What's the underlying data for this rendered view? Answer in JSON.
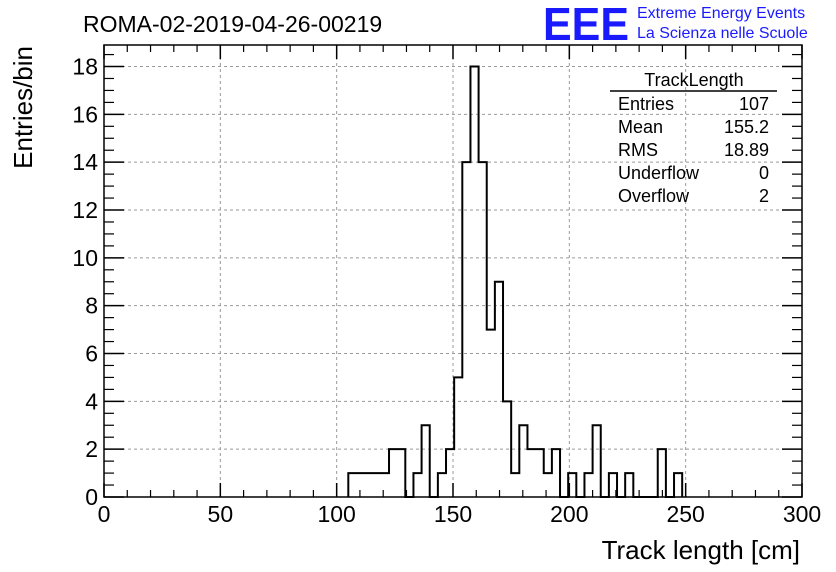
{
  "chart_data": {
    "type": "bar",
    "title": "ROMA-02-2019-04-26-00219",
    "xlabel": "Track length [cm]",
    "ylabel": "Entries/bin",
    "xlim": [
      0,
      300
    ],
    "ylim": [
      0,
      18.9
    ],
    "grid": true,
    "x_ticks": [
      "0",
      "50",
      "100",
      "150",
      "200",
      "250",
      "300"
    ],
    "y_ticks": [
      "0",
      "2",
      "4",
      "6",
      "8",
      "10",
      "12",
      "14",
      "16",
      "18"
    ],
    "bin_width": 3.5,
    "bins": [
      {
        "x": 105,
        "value": 1
      },
      {
        "x": 108.5,
        "value": 1
      },
      {
        "x": 115.5,
        "value": 1
      },
      {
        "x": 119,
        "value": 1
      },
      {
        "x": 122.5,
        "value": 2
      },
      {
        "x": 126,
        "value": 2
      },
      {
        "x": 129.5,
        "value": 0
      },
      {
        "x": 133,
        "value": 1
      },
      {
        "x": 136.5,
        "value": 3
      },
      {
        "x": 140,
        "value": 0
      },
      {
        "x": 143.5,
        "value": 1
      },
      {
        "x": 147,
        "value": 2
      },
      {
        "x": 150.5,
        "value": 5
      },
      {
        "x": 154,
        "value": 14
      },
      {
        "x": 157.5,
        "value": 18
      },
      {
        "x": 161,
        "value": 14
      },
      {
        "x": 164.5,
        "value": 7
      },
      {
        "x": 168,
        "value": 9
      },
      {
        "x": 171.5,
        "value": 4
      },
      {
        "x": 175,
        "value": 1
      },
      {
        "x": 178.5,
        "value": 3
      },
      {
        "x": 182,
        "value": 2
      },
      {
        "x": 185.5,
        "value": 2
      },
      {
        "x": 189,
        "value": 1
      },
      {
        "x": 192.5,
        "value": 2
      },
      {
        "x": 196,
        "value": 0
      },
      {
        "x": 199.5,
        "value": 1
      },
      {
        "x": 203,
        "value": 0
      },
      {
        "x": 206.5,
        "value": 1
      },
      {
        "x": 210,
        "value": 3
      },
      {
        "x": 213.5,
        "value": 0
      },
      {
        "x": 217,
        "value": 1
      },
      {
        "x": 220.5,
        "value": 0
      },
      {
        "x": 224,
        "value": 1
      },
      {
        "x": 227.5,
        "value": 0
      },
      {
        "x": 231,
        "value": 0
      },
      {
        "x": 234.5,
        "value": 0
      },
      {
        "x": 238,
        "value": 2
      },
      {
        "x": 241.5,
        "value": 0
      },
      {
        "x": 245,
        "value": 1
      }
    ],
    "line_color": "#000000"
  },
  "logo": {
    "mark": "EEE",
    "line1": "Extreme Energy Events",
    "line2": "La Scienza nelle Scuole",
    "color": "#1a1aff"
  },
  "stats_box": {
    "title": "TrackLength",
    "rows": [
      {
        "label": "Entries",
        "value": "107"
      },
      {
        "label": "Mean",
        "value": "155.2"
      },
      {
        "label": "RMS",
        "value": "18.89"
      },
      {
        "label": "Underflow",
        "value": "0"
      },
      {
        "label": "Overflow",
        "value": "2"
      }
    ]
  }
}
